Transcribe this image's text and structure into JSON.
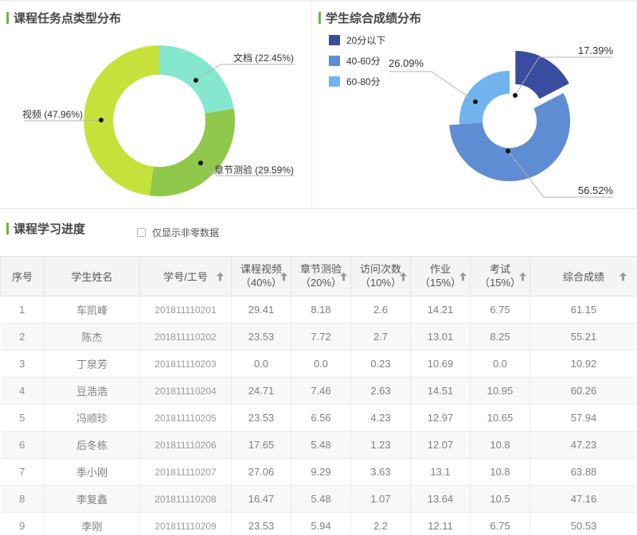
{
  "ui": {
    "accent_green": "#74b240"
  },
  "charts": {
    "task": {
      "title": "课程任务点类型分布",
      "label_doc": "文档 (22.45%)",
      "label_video": "视频 (47.96%)",
      "label_quiz": "章节测验 (29.59%)"
    },
    "score": {
      "title": "学生综合成绩分布",
      "legend": [
        {
          "label": "20分以下",
          "color": "#3a4c9f"
        },
        {
          "label": "40-60分",
          "color": "#5f8dd3"
        },
        {
          "label": "60-80分",
          "color": "#70b3ef"
        }
      ],
      "label_low": "17.39%",
      "label_mid": "56.52%",
      "label_high": "26.09%"
    }
  },
  "chart_data": [
    {
      "type": "pie",
      "title": "课程任务点类型分布",
      "labels": [
        "文档",
        "章节测验",
        "视频"
      ],
      "values": [
        22.45,
        29.59,
        47.96
      ],
      "colors": [
        "#85e7cd",
        "#8fc84a",
        "#c5e23a"
      ],
      "unit": "%",
      "style": "donut",
      "legend_position": "none"
    },
    {
      "type": "pie",
      "title": "学生综合成绩分布",
      "labels": [
        "20分以下",
        "40-60分",
        "60-80分"
      ],
      "values": [
        17.39,
        56.52,
        26.09
      ],
      "colors": [
        "#3a4c9f",
        "#5f8dd3",
        "#70b3ef"
      ],
      "unit": "%",
      "style": "donut-rose",
      "legend_position": "top-left"
    }
  ],
  "table": {
    "section_title": "课程学习进度",
    "filter": {
      "label": "仅显示非零数据",
      "checked": false
    },
    "headers": [
      {
        "label": "序号"
      },
      {
        "label": "学生姓名"
      },
      {
        "label": "学号/工号",
        "sortable": true
      },
      {
        "label": "课程视频",
        "weight": "（40%）",
        "sortable": true
      },
      {
        "label": "章节测验",
        "weight": "（20%）",
        "sortable": true
      },
      {
        "label": "访问次数",
        "weight": "（10%）",
        "sortable": true
      },
      {
        "label": "作业",
        "weight": "（15%）",
        "sortable": true
      },
      {
        "label": "考试",
        "weight": "（15%）",
        "sortable": true
      },
      {
        "label": "综合成绩",
        "sortable": true
      }
    ],
    "rows": [
      [
        "1",
        "车凯峰",
        "201811110201",
        "29.41",
        "8.18",
        "2.6",
        "14.21",
        "6.75",
        "61.15"
      ],
      [
        "2",
        "陈杰",
        "201811110202",
        "23.53",
        "7.72",
        "2.7",
        "13.01",
        "8.25",
        "55.21"
      ],
      [
        "3",
        "丁泉芳",
        "201811110203",
        "0.0",
        "0.0",
        "0.23",
        "10.69",
        "0.0",
        "10.92"
      ],
      [
        "4",
        "豆浩浩",
        "201811110204",
        "24.71",
        "7.46",
        "2.63",
        "14.51",
        "10.95",
        "60.26"
      ],
      [
        "5",
        "冯顺珍",
        "201811110205",
        "23.53",
        "6.56",
        "4.23",
        "12.97",
        "10.65",
        "57.94"
      ],
      [
        "6",
        "后冬栋",
        "201811110206",
        "17.65",
        "5.48",
        "1.23",
        "12.07",
        "10.8",
        "47.23"
      ],
      [
        "7",
        "季小刚",
        "201811110207",
        "27.06",
        "9.29",
        "3.63",
        "13.1",
        "10.8",
        "63.88"
      ],
      [
        "8",
        "李复鑫",
        "201811110208",
        "16.47",
        "5.48",
        "1.07",
        "13.64",
        "10.5",
        "47.16"
      ],
      [
        "9",
        "李刚",
        "201811110209",
        "23.53",
        "5.94",
        "2.2",
        "12.11",
        "6.75",
        "50.53"
      ]
    ]
  }
}
